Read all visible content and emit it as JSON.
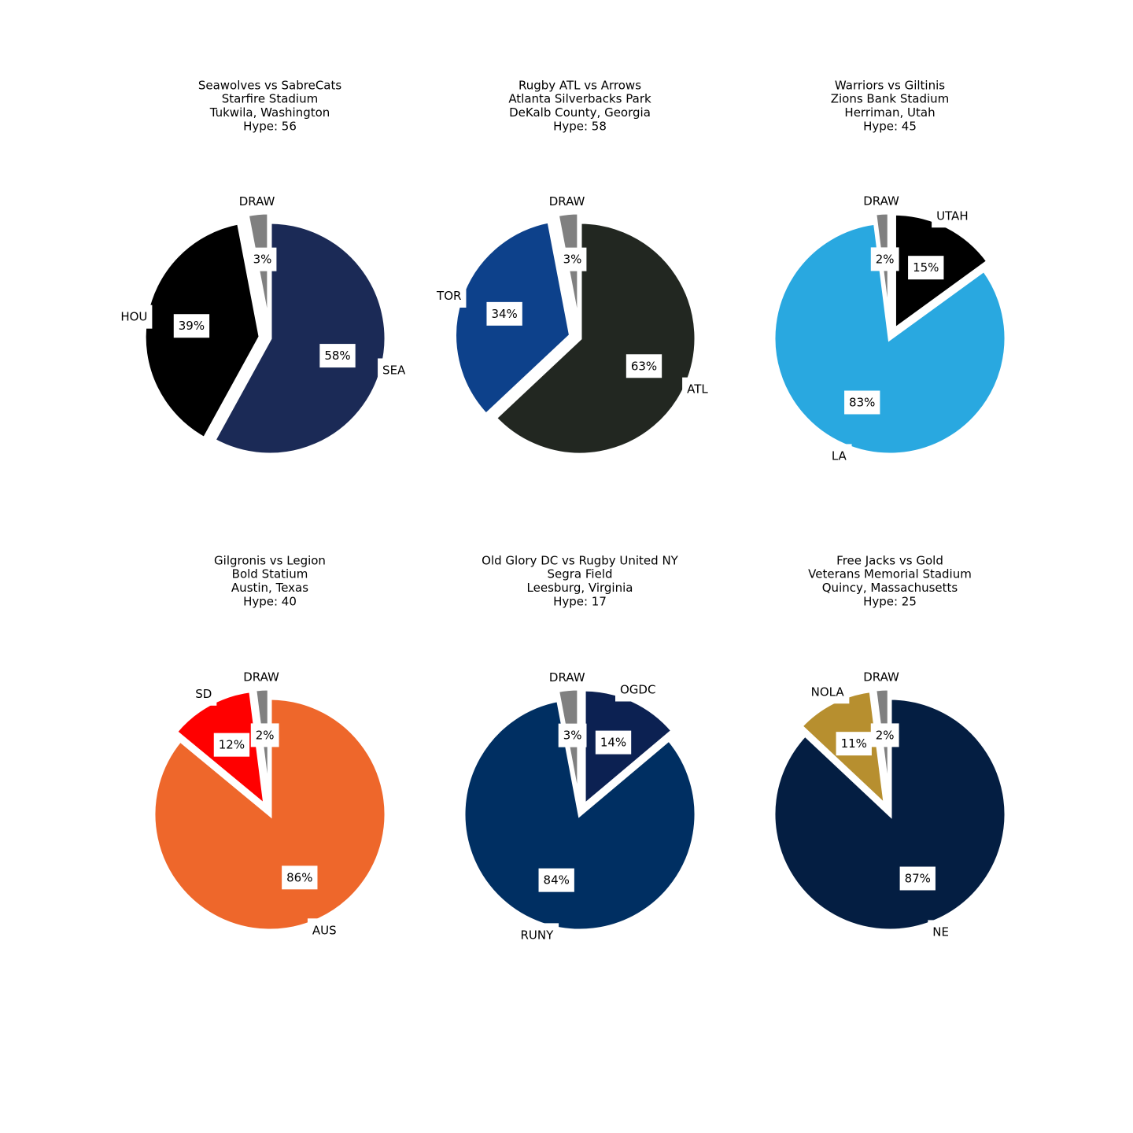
{
  "chart_data": [
    {
      "type": "pie",
      "title": [
        "Seawolves vs SabreCats",
        "Starfire Stadium",
        "Tukwila, Washington",
        "Hype: 56"
      ],
      "slices": [
        {
          "label": "DRAW",
          "value": 3,
          "pct_label": "3%",
          "color": "#808080",
          "exploded": true
        },
        {
          "label": "HOU",
          "value": 39,
          "pct_label": "39%",
          "color": "#000000",
          "exploded": true
        },
        {
          "label": "SEA",
          "value": 58,
          "pct_label": "58%",
          "color": "#1b2a56",
          "exploded": false
        }
      ]
    },
    {
      "type": "pie",
      "title": [
        "Rugby ATL vs Arrows",
        "Atlanta Silverbacks Park",
        "DeKalb County, Georgia",
        "Hype: 58"
      ],
      "slices": [
        {
          "label": "DRAW",
          "value": 3,
          "pct_label": "3%",
          "color": "#808080",
          "exploded": true
        },
        {
          "label": "TOR",
          "value": 34,
          "pct_label": "34%",
          "color": "#0d418b",
          "exploded": true
        },
        {
          "label": "ATL",
          "value": 63,
          "pct_label": "63%",
          "color": "#222721",
          "exploded": false
        }
      ]
    },
    {
      "type": "pie",
      "title": [
        "Warriors vs Giltinis",
        "Zions Bank Stadium",
        "Herriman, Utah",
        "Hype: 45"
      ],
      "slices": [
        {
          "label": "DRAW",
          "value": 2,
          "pct_label": "2%",
          "color": "#808080",
          "exploded": true
        },
        {
          "label": "LA",
          "value": 83,
          "pct_label": "83%",
          "color": "#29a8e0",
          "exploded": false
        },
        {
          "label": "UTAH",
          "value": 15,
          "pct_label": "15%",
          "color": "#000000",
          "exploded": true
        }
      ]
    },
    {
      "type": "pie",
      "title": [
        "Gilgronis vs Legion",
        "Bold Statium",
        "Austin, Texas",
        "Hype: 40"
      ],
      "slices": [
        {
          "label": "DRAW",
          "value": 2,
          "pct_label": "2%",
          "color": "#808080",
          "exploded": true
        },
        {
          "label": "SD",
          "value": 12,
          "pct_label": "12%",
          "color": "#ff0000",
          "exploded": true
        },
        {
          "label": "AUS",
          "value": 86,
          "pct_label": "86%",
          "color": "#ee672b",
          "exploded": false
        }
      ]
    },
    {
      "type": "pie",
      "title": [
        "Old Glory DC vs Rugby United NY",
        "Segra Field",
        "Leesburg, Virginia",
        "Hype: 17"
      ],
      "slices": [
        {
          "label": "DRAW",
          "value": 3,
          "pct_label": "3%",
          "color": "#808080",
          "exploded": true
        },
        {
          "label": "RUNY",
          "value": 84,
          "pct_label": "84%",
          "color": "#002f62",
          "exploded": false
        },
        {
          "label": "OGDC",
          "value": 14,
          "pct_label": "14%",
          "color": "#0c2152",
          "exploded": true
        }
      ]
    },
    {
      "type": "pie",
      "title": [
        "Free Jacks vs Gold",
        "Veterans Memorial Stadium",
        "Quincy, Massachusetts",
        "Hype: 25"
      ],
      "slices": [
        {
          "label": "DRAW",
          "value": 2,
          "pct_label": "2%",
          "color": "#808080",
          "exploded": true
        },
        {
          "label": "NOLA",
          "value": 11,
          "pct_label": "11%",
          "color": "#b78f2f",
          "exploded": true
        },
        {
          "label": "NE",
          "value": 87,
          "pct_label": "87%",
          "color": "#041e42",
          "exploded": false
        }
      ]
    }
  ]
}
